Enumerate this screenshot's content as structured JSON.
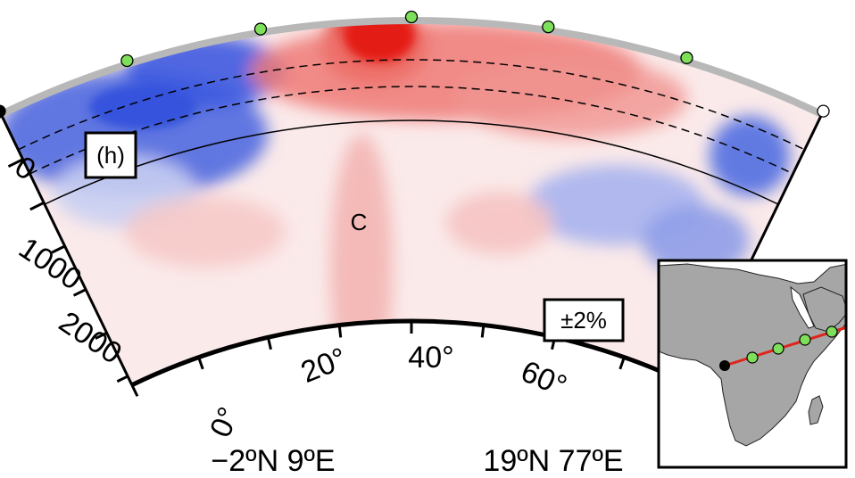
{
  "panel_label": "(h)",
  "feature_label": "C",
  "scale_label": "±2%",
  "depth_ticks": [
    "0",
    "1000",
    "2000"
  ],
  "angle_ticks": [
    "0°",
    "20°",
    "40°",
    "60°"
  ],
  "start_coord": "−2ºN 9ºE",
  "end_coord": "19ºN 77ºE",
  "colors": {
    "fast": "#2f4fd8",
    "slow": "#e0231c",
    "neutral": "#fbe9e9",
    "surface": "#b8b8b8",
    "station": "#7ee05a",
    "land": "#a6a6a6",
    "profile_line": "#e0231c"
  }
}
